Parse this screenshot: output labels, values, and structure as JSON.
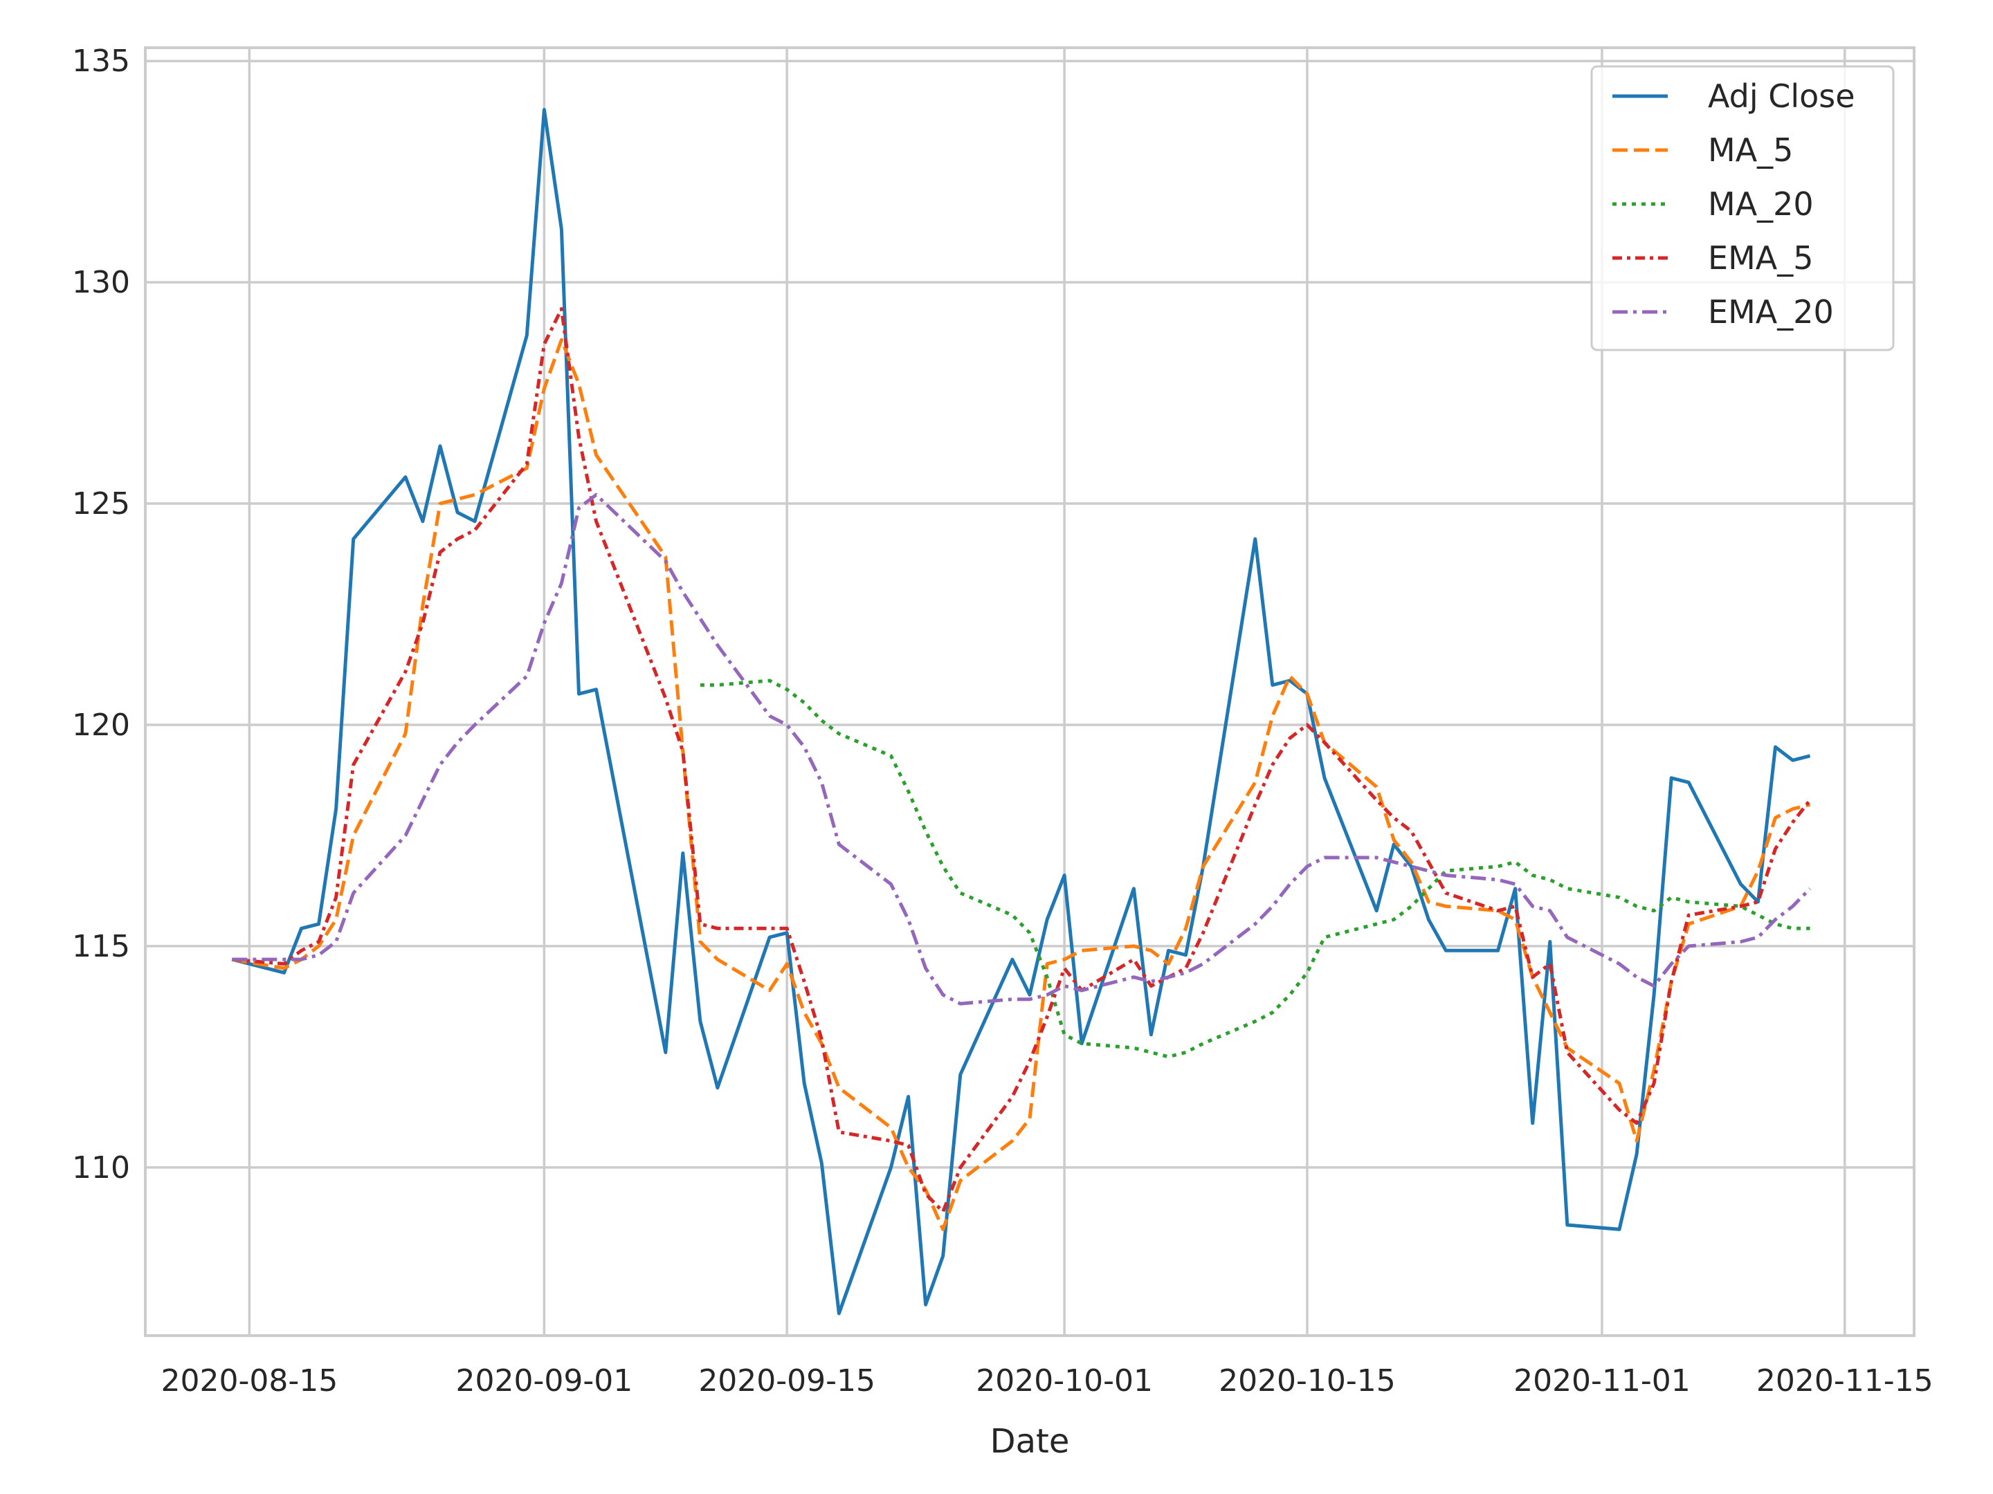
{
  "chart_data": {
    "type": "line",
    "title": "",
    "xlabel": "Date",
    "ylabel": "",
    "x_ticks": [
      "2020-08-15",
      "2020-09-01",
      "2020-09-15",
      "2020-10-01",
      "2020-10-15",
      "2020-11-01",
      "2020-11-15"
    ],
    "y_ticks": [
      110,
      115,
      120,
      125,
      130,
      135
    ],
    "ylim": [
      106.2,
      135.3
    ],
    "xlim": [
      "2020-08-09",
      "2020-11-19"
    ],
    "grid": true,
    "legend_position": "top-right",
    "x": [
      "2020-08-14",
      "2020-08-17",
      "2020-08-18",
      "2020-08-19",
      "2020-08-20",
      "2020-08-21",
      "2020-08-24",
      "2020-08-25",
      "2020-08-26",
      "2020-08-27",
      "2020-08-28",
      "2020-08-31",
      "2020-09-01",
      "2020-09-02",
      "2020-09-03",
      "2020-09-04",
      "2020-09-08",
      "2020-09-09",
      "2020-09-10",
      "2020-09-11",
      "2020-09-14",
      "2020-09-15",
      "2020-09-16",
      "2020-09-17",
      "2020-09-18",
      "2020-09-21",
      "2020-09-22",
      "2020-09-23",
      "2020-09-24",
      "2020-09-25",
      "2020-09-28",
      "2020-09-29",
      "2020-09-30",
      "2020-10-01",
      "2020-10-02",
      "2020-10-05",
      "2020-10-06",
      "2020-10-07",
      "2020-10-08",
      "2020-10-09",
      "2020-10-12",
      "2020-10-13",
      "2020-10-14",
      "2020-10-15",
      "2020-10-16",
      "2020-10-19",
      "2020-10-20",
      "2020-10-21",
      "2020-10-22",
      "2020-10-23",
      "2020-10-26",
      "2020-10-27",
      "2020-10-28",
      "2020-10-29",
      "2020-10-30",
      "2020-11-02",
      "2020-11-03",
      "2020-11-04",
      "2020-11-05",
      "2020-11-06",
      "2020-11-09",
      "2020-11-10",
      "2020-11-11",
      "2020-11-12",
      "2020-11-13"
    ],
    "series": [
      {
        "name": "Adj Close",
        "color": "#1f77b4",
        "dash": "solid",
        "values": [
          114.7,
          114.4,
          115.4,
          115.5,
          118.1,
          124.2,
          125.6,
          124.6,
          126.3,
          124.8,
          124.6,
          128.8,
          133.9,
          131.2,
          120.7,
          120.8,
          112.6,
          117.1,
          113.3,
          111.8,
          115.2,
          115.3,
          111.9,
          110.1,
          106.7,
          110.0,
          111.6,
          106.9,
          108.0,
          112.1,
          114.7,
          113.9,
          115.6,
          116.6,
          112.8,
          116.3,
          113.0,
          114.9,
          114.8,
          116.8,
          124.2,
          120.9,
          121.0,
          120.7,
          118.8,
          115.8,
          117.3,
          116.8,
          115.6,
          114.9,
          114.9,
          116.3,
          111.0,
          115.1,
          108.7,
          108.6,
          110.3,
          113.9,
          118.8,
          118.7,
          116.4,
          116.0,
          119.5,
          119.2,
          119.3
        ]
      },
      {
        "name": "MA_5",
        "color": "#ff7f0e",
        "dash": "dashed",
        "values": [
          114.7,
          114.5,
          114.7,
          115.0,
          115.6,
          117.5,
          119.8,
          122.7,
          125.0,
          125.1,
          125.2,
          125.8,
          127.6,
          128.7,
          127.7,
          126.1,
          123.8,
          119.4,
          115.1,
          114.7,
          114.0,
          114.6,
          113.5,
          112.8,
          111.8,
          110.9,
          110.0,
          109.5,
          108.6,
          109.7,
          110.6,
          111.1,
          114.6,
          114.7,
          114.9,
          115.0,
          114.9,
          114.6,
          115.4,
          116.8,
          118.7,
          120.2,
          121.1,
          120.7,
          119.6,
          118.6,
          117.4,
          116.9,
          116.0,
          115.9,
          115.8,
          115.6,
          114.3,
          113.5,
          112.7,
          111.9,
          110.6,
          112.2,
          114.2,
          115.5,
          115.9,
          116.7,
          117.9,
          118.1,
          118.2
        ]
      },
      {
        "name": "MA_20",
        "color": "#2ca02c",
        "dash": "dotted",
        "values": [
          null,
          null,
          null,
          null,
          null,
          null,
          null,
          null,
          null,
          null,
          null,
          null,
          null,
          null,
          null,
          null,
          null,
          null,
          120.9,
          120.9,
          121.0,
          120.8,
          120.5,
          120.1,
          119.8,
          119.3,
          118.5,
          117.6,
          116.8,
          116.2,
          115.7,
          115.3,
          114.3,
          113.0,
          112.8,
          112.7,
          112.6,
          112.5,
          112.6,
          112.8,
          113.3,
          113.5,
          113.9,
          114.4,
          115.2,
          115.5,
          115.6,
          115.9,
          116.3,
          116.7,
          116.8,
          116.9,
          116.6,
          116.5,
          116.3,
          116.1,
          115.9,
          115.8,
          116.1,
          116.0,
          115.9,
          115.7,
          115.5,
          115.4,
          115.4
        ]
      },
      {
        "name": "EMA_5",
        "color": "#d62728",
        "dash": "dashdot2",
        "values": [
          114.7,
          114.6,
          114.9,
          115.1,
          116.1,
          119.1,
          121.2,
          122.3,
          123.9,
          124.2,
          124.4,
          125.9,
          128.6,
          129.4,
          126.5,
          124.6,
          120.6,
          119.4,
          115.5,
          115.4,
          115.4,
          115.4,
          114.2,
          112.9,
          110.8,
          110.6,
          110.5,
          109.4,
          109.0,
          110.0,
          111.6,
          112.4,
          113.4,
          114.5,
          114.0,
          114.7,
          114.1,
          114.3,
          114.5,
          115.3,
          118.2,
          119.1,
          119.7,
          120.0,
          119.6,
          118.3,
          117.9,
          117.6,
          116.9,
          116.2,
          115.8,
          115.9,
          114.3,
          114.6,
          112.6,
          111.3,
          111.0,
          111.9,
          114.2,
          115.7,
          115.9,
          116.0,
          117.2,
          117.8,
          118.3
        ]
      },
      {
        "name": "EMA_20",
        "color": "#9467bd",
        "dash": "dashdot",
        "values": [
          114.7,
          114.7,
          114.7,
          114.8,
          115.1,
          116.2,
          117.5,
          118.3,
          119.1,
          119.6,
          120.0,
          121.1,
          122.3,
          123.2,
          124.9,
          125.2,
          123.7,
          123.0,
          122.4,
          121.8,
          120.2,
          120.0,
          119.5,
          118.7,
          117.3,
          116.4,
          115.6,
          114.5,
          113.9,
          113.7,
          113.8,
          113.8,
          113.9,
          114.1,
          114.0,
          114.3,
          114.2,
          114.3,
          114.4,
          114.6,
          115.5,
          115.9,
          116.4,
          116.8,
          117.0,
          117.0,
          116.9,
          116.8,
          116.7,
          116.6,
          116.5,
          116.4,
          115.9,
          115.8,
          115.2,
          114.6,
          114.3,
          114.1,
          114.6,
          115.0,
          115.1,
          115.2,
          115.6,
          115.9,
          116.3
        ]
      }
    ]
  }
}
